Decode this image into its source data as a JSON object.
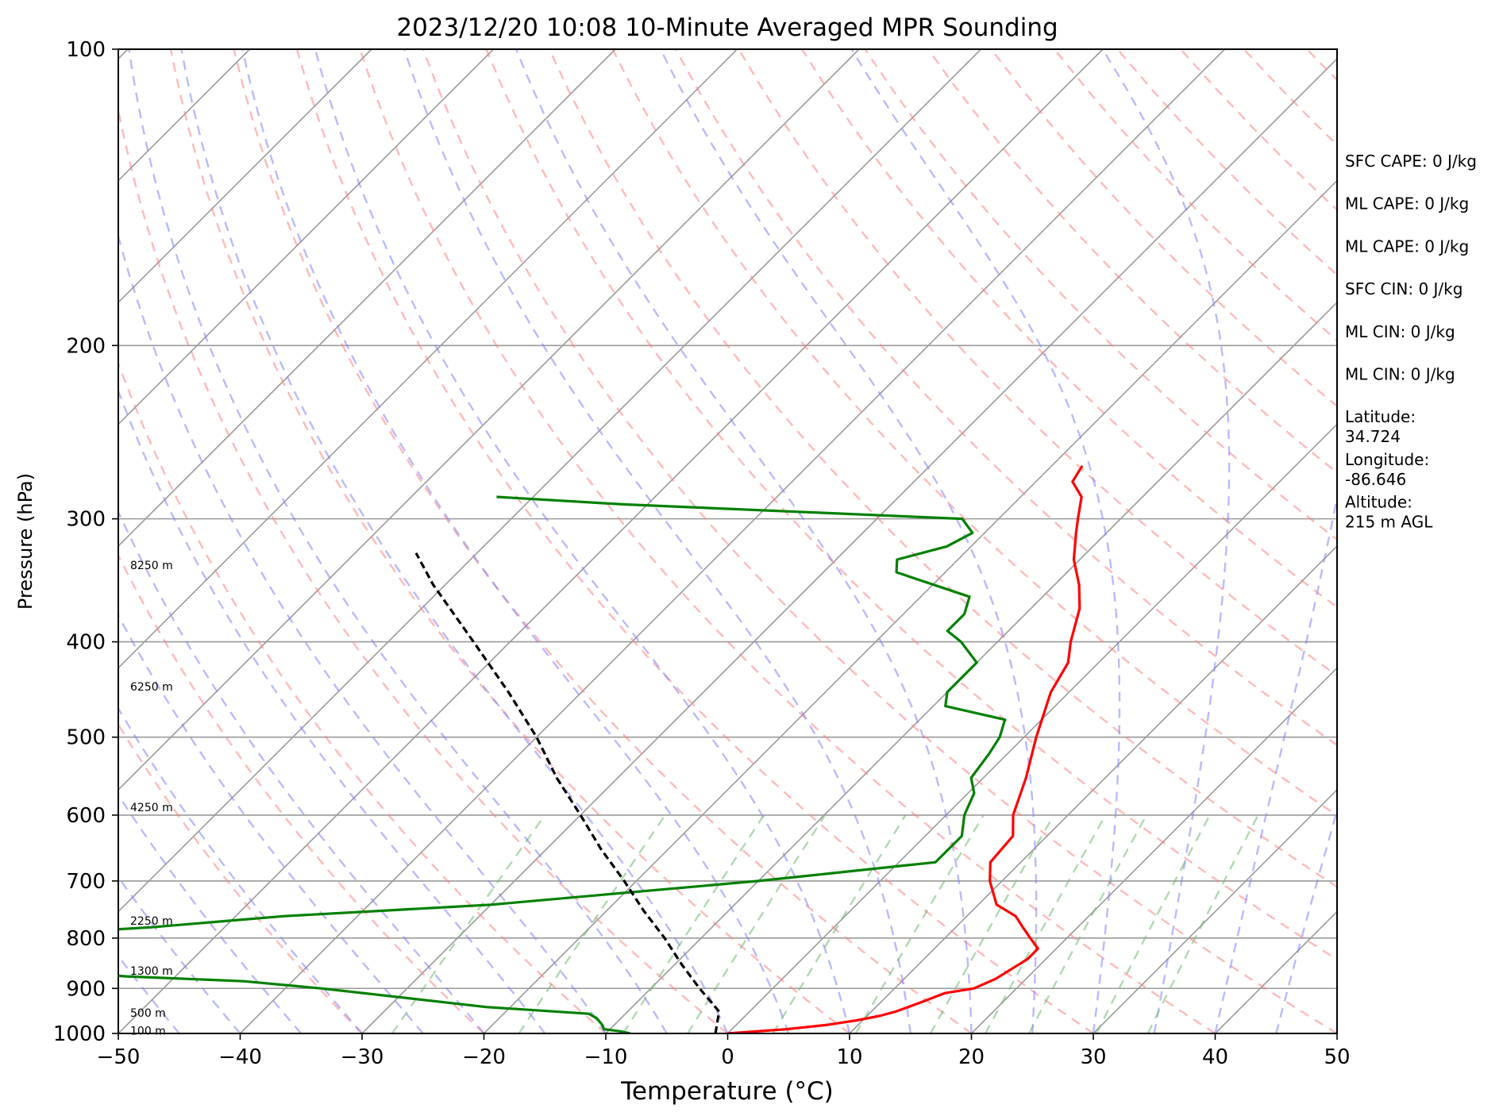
{
  "chart_data": {
    "type": "line",
    "title": "2023/12/20 10:08 10-Minute Averaged MPR Sounding",
    "xlabel": "Temperature (°C)",
    "ylabel": "Pressure (hPa)",
    "xlim": [
      -50,
      50
    ],
    "ylim": [
      1000,
      100
    ],
    "y_scale": "log",
    "x_ticks": [
      "−50",
      "−40",
      "−30",
      "−20",
      "−10",
      "0",
      "10",
      "20",
      "30",
      "40",
      "50"
    ],
    "y_ticks": [
      "100",
      "200",
      "300",
      "400",
      "500",
      "600",
      "700",
      "800",
      "900",
      "1000"
    ],
    "grid": true,
    "skew": 45,
    "height_labels": [
      {
        "p": 995,
        "label": "100 m"
      },
      {
        "p": 955,
        "label": "500 m"
      },
      {
        "p": 865,
        "label": "1300 m"
      },
      {
        "p": 770,
        "label": "2250 m"
      },
      {
        "p": 590,
        "label": "4250 m"
      },
      {
        "p": 445,
        "label": "6250 m"
      },
      {
        "p": 335,
        "label": "8250 m"
      }
    ],
    "series": [
      {
        "role": "temperature",
        "color": "#ff0000",
        "points": [
          [
            1000,
            0
          ],
          [
            990,
            4.5
          ],
          [
            980,
            7.5
          ],
          [
            970,
            9.5
          ],
          [
            960,
            11
          ],
          [
            950,
            12
          ],
          [
            930,
            13.3
          ],
          [
            910,
            14.5
          ],
          [
            900,
            16.5
          ],
          [
            880,
            17.5
          ],
          [
            860,
            18
          ],
          [
            840,
            18.5
          ],
          [
            820,
            18.5
          ],
          [
            800,
            17
          ],
          [
            780,
            15.5
          ],
          [
            760,
            14
          ],
          [
            740,
            11.5
          ],
          [
            700,
            9
          ],
          [
            670,
            7.5
          ],
          [
            630,
            7.2
          ],
          [
            600,
            5.5
          ],
          [
            550,
            3.5
          ],
          [
            500,
            1
          ],
          [
            450,
            -1.5
          ],
          [
            420,
            -2.5
          ],
          [
            400,
            -4
          ],
          [
            370,
            -6
          ],
          [
            350,
            -8
          ],
          [
            330,
            -10.5
          ],
          [
            310,
            -12.5
          ],
          [
            300,
            -13.5
          ],
          [
            285,
            -15
          ],
          [
            275,
            -17
          ],
          [
            265,
            -17.5
          ]
        ]
      },
      {
        "role": "dewpoint",
        "color": "#008000",
        "points": [
          [
            1000,
            -8
          ],
          [
            995,
            -9
          ],
          [
            990,
            -10.5
          ],
          [
            980,
            -11
          ],
          [
            965,
            -12
          ],
          [
            955,
            -13
          ],
          [
            940,
            -22
          ],
          [
            900,
            -37
          ],
          [
            885,
            -44
          ],
          [
            875,
            -54
          ],
          [
            862,
            -62
          ],
          [
            855,
            -62
          ],
          [
            843,
            -60
          ],
          [
            838,
            -59
          ],
          [
            828,
            -62
          ],
          [
            815,
            -64
          ],
          [
            800,
            -64
          ],
          [
            790,
            -63
          ],
          [
            780,
            -56
          ],
          [
            760,
            -46
          ],
          [
            740,
            -30
          ],
          [
            700,
            -10
          ],
          [
            670,
            3
          ],
          [
            630,
            3
          ],
          [
            600,
            1.5
          ],
          [
            570,
            0.5
          ],
          [
            550,
            -1
          ],
          [
            520,
            -1.5
          ],
          [
            500,
            -2
          ],
          [
            480,
            -3
          ],
          [
            465,
            -9
          ],
          [
            450,
            -10
          ],
          [
            440,
            -10
          ],
          [
            420,
            -10
          ],
          [
            400,
            -13
          ],
          [
            390,
            -15
          ],
          [
            375,
            -15
          ],
          [
            360,
            -16
          ],
          [
            340,
            -24
          ],
          [
            330,
            -25
          ],
          [
            320,
            -22
          ],
          [
            310,
            -21
          ],
          [
            300,
            -23
          ],
          [
            290,
            -52
          ],
          [
            285,
            -63
          ]
        ]
      },
      {
        "role": "parcel",
        "color": "#000000",
        "style": "dashed",
        "points": [
          [
            1000,
            -1
          ],
          [
            950,
            -2.5
          ],
          [
            900,
            -6
          ],
          [
            850,
            -9.5
          ],
          [
            800,
            -13
          ],
          [
            750,
            -17
          ],
          [
            700,
            -21
          ],
          [
            650,
            -25.5
          ],
          [
            600,
            -30
          ],
          [
            550,
            -35
          ],
          [
            500,
            -40
          ],
          [
            450,
            -46
          ],
          [
            400,
            -53
          ],
          [
            350,
            -61
          ],
          [
            325,
            -65
          ]
        ]
      }
    ],
    "annotations": [
      {
        "text": "SFC CAPE: 0 J/kg"
      },
      {
        "text": "ML CAPE: 0 J/kg"
      },
      {
        "text": "ML CAPE: 0 J/kg"
      },
      {
        "text": "SFC CIN: 0 J/kg"
      },
      {
        "text": "ML CIN: 0 J/kg"
      },
      {
        "text": "ML CIN: 0 J/kg"
      },
      {
        "text": "Latitude:",
        "text2": "34.724"
      },
      {
        "text": "Longitude:",
        "text2": "-86.646"
      },
      {
        "text": "Altitude:",
        "text2": "215 m AGL"
      }
    ],
    "colors": {
      "isotherm": "#9a9a9a",
      "dry_adiabat": "#ff8080",
      "moist_adiabat": "#8080ff",
      "mixing_ratio": "#70b870",
      "grid": "#9a9a9a"
    }
  }
}
